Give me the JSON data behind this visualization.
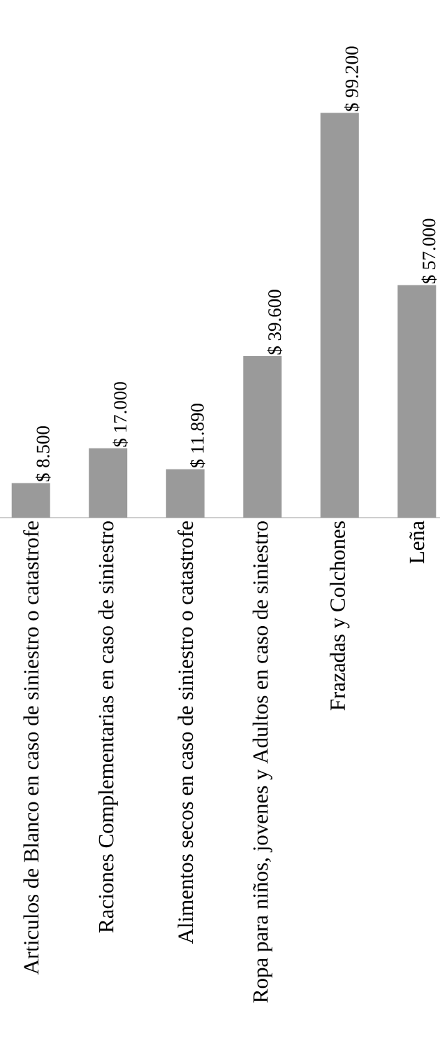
{
  "chart_data": {
    "type": "bar",
    "categories": [
      "Articulos de Blanco en caso de siniestro o catastrofe",
      "Raciones Complementarias en caso de siniestro",
      "Alimentos secos en caso de siniestro o catastrofe",
      "Ropa para niños, jovenes y Adultos en caso de siniestro",
      "Frazadas y Colchones",
      "Leña"
    ],
    "values": [
      8500,
      17000,
      11890,
      39600,
      99200,
      57000
    ],
    "value_labels": [
      "$ 8.500",
      "$ 17.000",
      "$ 11.890",
      "$ 39.600",
      "$ 99.200",
      "$ 57.000"
    ],
    "color": "#9a9a9a"
  }
}
